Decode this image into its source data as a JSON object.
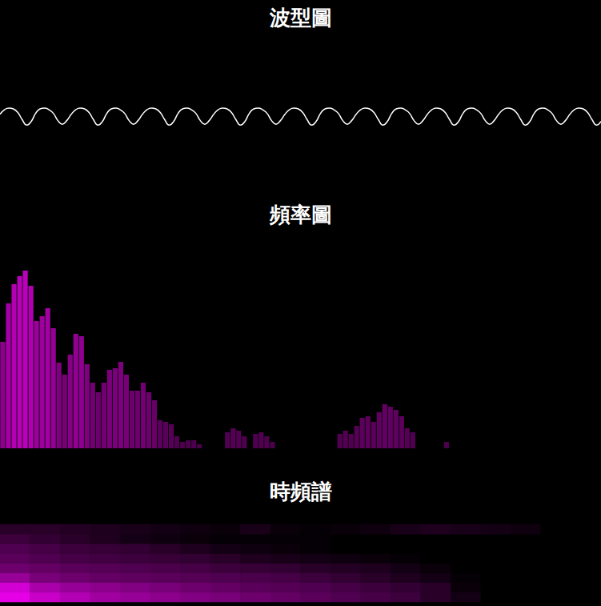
{
  "chart_data": [
    {
      "type": "line",
      "title": "波型圖",
      "color": "#ffffff",
      "ylim": [
        -4,
        4
      ],
      "yticks": [
        -4,
        0,
        4
      ],
      "grid": false,
      "tick_labels": false,
      "values": [
        0.2,
        0.7,
        0.9,
        0.8,
        0.4,
        -0.4,
        -1.0,
        -0.6,
        0.3,
        0.8,
        0.9,
        0.7,
        0.3,
        -0.5,
        -0.9,
        -0.5,
        0.2,
        0.7,
        0.9,
        0.8,
        0.4,
        -0.4,
        -1.0,
        -0.6,
        0.3,
        0.8,
        0.9,
        0.7,
        0.3,
        -0.5,
        -0.9,
        -0.5,
        0.2,
        0.7,
        0.9,
        0.8,
        0.4,
        -0.4,
        -1.0,
        -0.6,
        0.3,
        0.8,
        0.9,
        0.7,
        0.3,
        -0.5,
        -0.9,
        -0.5,
        0.2,
        0.7,
        0.9,
        0.8,
        0.4,
        -0.4,
        -1.0,
        -0.6,
        0.3,
        0.8,
        0.9,
        0.7,
        0.3,
        -0.5,
        -0.9,
        -0.5,
        0.2,
        0.7,
        0.9,
        0.8,
        0.4,
        -0.4,
        -1.0,
        -0.6,
        0.3,
        0.8,
        0.9,
        0.7,
        0.3,
        -0.5,
        -0.9,
        -0.5,
        0.2,
        0.7,
        0.9,
        0.8,
        0.4,
        -0.4,
        -1.0,
        -0.6,
        0.3,
        0.8,
        0.9,
        0.7,
        0.3,
        -0.5,
        -0.9,
        -0.5,
        0.2,
        0.7,
        0.9,
        0.8,
        0.4,
        -0.4,
        -1.0,
        -0.6,
        0.3,
        0.8,
        0.9,
        0.7,
        0.3,
        -0.5,
        -0.9,
        -0.5,
        0.2,
        0.7,
        0.9,
        0.8,
        0.4,
        -0.4,
        -1.0,
        -0.6,
        0.3,
        0.8,
        0.9,
        0.7,
        0.3,
        -0.5,
        -0.9,
        -0.5,
        0.2,
        0.7,
        0.9,
        0.8,
        0.4,
        -0.4,
        -1.0,
        -0.6
      ]
    },
    {
      "type": "bar",
      "title": "頻率圖",
      "color": "#cc00cc",
      "ylim": [
        0,
        255
      ],
      "yticks": [
        0,
        255
      ],
      "grid": false,
      "tick_labels": false,
      "values": [
        133,
        181,
        205,
        215,
        222,
        203,
        159,
        165,
        175,
        150,
        107,
        92,
        117,
        143,
        140,
        105,
        82,
        70,
        82,
        98,
        100,
        108,
        92,
        72,
        72,
        82,
        70,
        60,
        35,
        33,
        30,
        15,
        8,
        10,
        10,
        5,
        0,
        0,
        0,
        0,
        20,
        25,
        22,
        15,
        0,
        18,
        20,
        15,
        8,
        0,
        0,
        0,
        0,
        0,
        0,
        0,
        0,
        0,
        0,
        0,
        18,
        22,
        18,
        28,
        38,
        40,
        33,
        45,
        55,
        52,
        48,
        40,
        25,
        20,
        0,
        0,
        0,
        0,
        0,
        8,
        0,
        0,
        0,
        0,
        0,
        0,
        0,
        0,
        0,
        0,
        0,
        0,
        0,
        0,
        0,
        0,
        0,
        0,
        0,
        0,
        0,
        0,
        0,
        0,
        0,
        0,
        0
      ]
    },
    {
      "type": "heatmap",
      "title": "時頻譜",
      "color": "#ff00ff",
      "value_range": [
        0,
        255
      ],
      "grid": false,
      "tick_labels": false,
      "cells": [
        [
          230,
          200,
          180,
          160,
          150,
          140,
          130,
          120,
          110,
          100,
          90,
          80,
          70,
          60,
          40,
          20,
          0,
          0,
          0,
          0
        ],
        [
          210,
          170,
          150,
          140,
          130,
          120,
          110,
          100,
          90,
          85,
          80,
          70,
          60,
          50,
          40,
          10,
          0,
          0,
          0,
          0
        ],
        [
          150,
          120,
          110,
          100,
          95,
          90,
          85,
          80,
          75,
          70,
          60,
          50,
          40,
          30,
          20,
          5,
          0,
          0,
          0,
          0
        ],
        [
          110,
          100,
          90,
          85,
          80,
          75,
          70,
          60,
          55,
          50,
          40,
          35,
          30,
          20,
          10,
          0,
          0,
          0,
          0,
          0
        ],
        [
          90,
          80,
          70,
          65,
          60,
          55,
          50,
          40,
          30,
          25,
          20,
          15,
          10,
          5,
          0,
          0,
          0,
          0,
          0,
          0
        ],
        [
          80,
          70,
          60,
          55,
          50,
          40,
          30,
          20,
          15,
          10,
          5,
          0,
          0,
          0,
          0,
          0,
          0,
          0,
          0,
          0
        ],
        [
          60,
          50,
          40,
          30,
          20,
          15,
          10,
          5,
          5,
          5,
          5,
          0,
          0,
          0,
          0,
          0,
          0,
          0,
          0,
          0
        ],
        [
          40,
          40,
          35,
          30,
          25,
          20,
          15,
          10,
          25,
          10,
          5,
          10,
          15,
          25,
          30,
          25,
          20,
          15,
          0,
          0
        ]
      ]
    }
  ]
}
